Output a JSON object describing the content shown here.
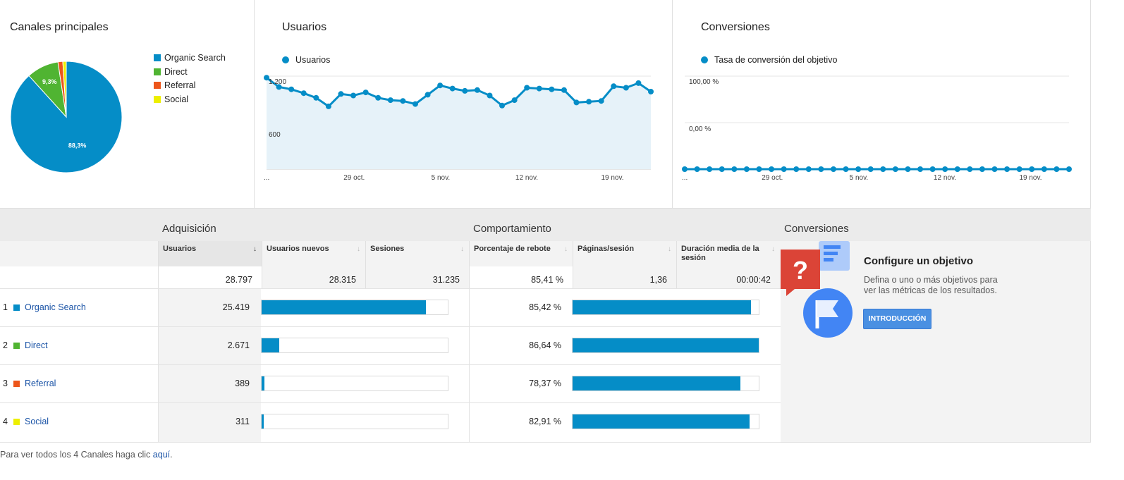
{
  "panels": {
    "channels": {
      "title": "Canales principales",
      "legend": [
        {
          "label": "Organic Search",
          "color": "#058dc7"
        },
        {
          "label": "Direct",
          "color": "#50b432"
        },
        {
          "label": "Referral",
          "color": "#ed561b"
        },
        {
          "label": "Social",
          "color": "#edef00"
        }
      ]
    },
    "users": {
      "title": "Usuarios",
      "legend": "Usuarios"
    },
    "conversions": {
      "title": "Conversiones",
      "legend": "Tasa de conversión del objetivo"
    }
  },
  "chart_data": [
    {
      "type": "pie",
      "categories": [
        "Organic Search",
        "Direct",
        "Referral",
        "Social"
      ],
      "values": [
        88.3,
        9.3,
        1.4,
        1.0
      ],
      "slice_labels": [
        "88,3%",
        "9,3%",
        "",
        ""
      ],
      "colors": [
        "#058dc7",
        "#50b432",
        "#ed561b",
        "#edef00"
      ]
    },
    {
      "type": "area",
      "series": [
        {
          "name": "Usuarios",
          "values": [
            1180,
            1060,
            1030,
            980,
            920,
            810,
            970,
            950,
            990,
            920,
            890,
            880,
            840,
            960,
            1080,
            1040,
            1010,
            1020,
            950,
            820,
            890,
            1050,
            1040,
            1030,
            1020,
            860,
            870,
            880,
            1070,
            1050,
            1110,
            1000
          ]
        }
      ],
      "x_ticks": [
        "...",
        "29 oct.",
        "5 nov.",
        "12 nov.",
        "19 nov."
      ],
      "y_ticks": [
        "1.200",
        "600"
      ],
      "ylim": [
        0,
        1200
      ]
    },
    {
      "type": "line",
      "series": [
        {
          "name": "Tasa de conversión del objetivo",
          "values": [
            0,
            0,
            0,
            0,
            0,
            0,
            0,
            0,
            0,
            0,
            0,
            0,
            0,
            0,
            0,
            0,
            0,
            0,
            0,
            0,
            0,
            0,
            0,
            0,
            0,
            0,
            0,
            0,
            0,
            0,
            0,
            0
          ]
        }
      ],
      "x_ticks": [
        "...",
        "29 oct.",
        "5 nov.",
        "12 nov.",
        "19 nov."
      ],
      "y_ticks": [
        "100,00 %",
        "0,00 %"
      ],
      "ylim": [
        0,
        100
      ]
    }
  ],
  "table": {
    "groups": {
      "acq": "Adquisición",
      "beh": "Comportamiento",
      "conv": "Conversiones"
    },
    "headers": {
      "usuarios": "Usuarios",
      "nuevos": "Usuarios nuevos",
      "sesiones": "Sesiones",
      "rebote": "Porcentaje de rebote",
      "paginas": "Páginas/sesión",
      "duracion": "Duración media de la sesión"
    },
    "totals": {
      "usuarios": "28.797",
      "nuevos": "28.315",
      "sesiones": "31.235",
      "rebote": "85,41 %",
      "paginas": "1,36",
      "duracion": "00:00:42"
    },
    "rows": [
      {
        "idx": "1",
        "name": "Organic Search",
        "color": "#058dc7",
        "usuarios": "25.419",
        "rebote": "85,42 %",
        "users_share": 0.883,
        "bounce_share": 0.96
      },
      {
        "idx": "2",
        "name": "Direct",
        "color": "#50b432",
        "usuarios": "2.671",
        "rebote": "86,64 %",
        "users_share": 0.093,
        "bounce_share": 1.0
      },
      {
        "idx": "3",
        "name": "Referral",
        "color": "#ed561b",
        "usuarios": "389",
        "rebote": "78,37 %",
        "users_share": 0.014,
        "bounce_share": 0.9
      },
      {
        "idx": "4",
        "name": "Social",
        "color": "#edef00",
        "usuarios": "311",
        "rebote": "82,91 %",
        "users_share": 0.011,
        "bounce_share": 0.95
      }
    ]
  },
  "goal": {
    "title": "Configure un objetivo",
    "desc": "Defina o uno o más objetivos para ver las métricas de los resultados.",
    "button": "INTRODUCCIÓN"
  },
  "footer": {
    "text": "Para ver todos los 4 Canales haga clic ",
    "link": "aquí",
    "end": "."
  }
}
